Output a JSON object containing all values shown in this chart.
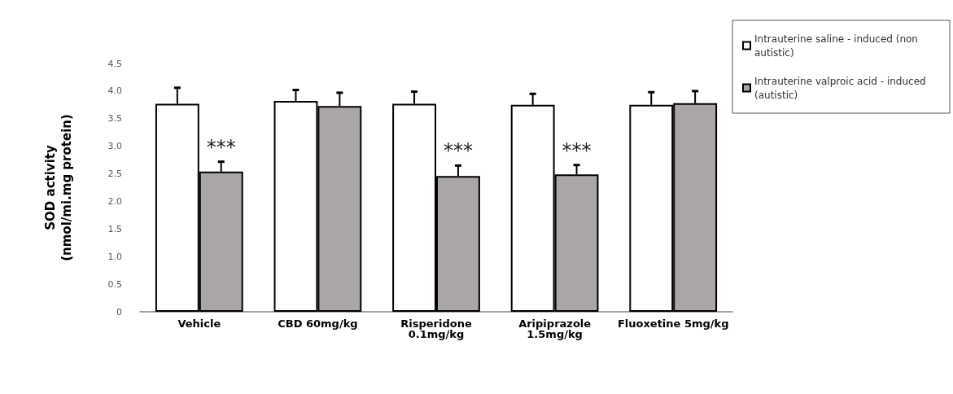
{
  "chart_data": {
    "type": "bar",
    "ylabel": "SOD activity\n(nmol/mi.mg protein)",
    "categories": [
      "Vehicle",
      "CBD 60mg/kg",
      "Risperidone\n0.1mg/kg",
      "Aripiprazole\n1.5mg/kg",
      "Fluoxetine 5mg/kg"
    ],
    "series": [
      {
        "name": "Intrauterine saline - induced (non autistic)",
        "color": "#ffffff",
        "values": [
          3.77,
          3.82,
          3.77,
          3.75,
          3.75
        ],
        "errors": [
          [
            3.77,
            4.06
          ],
          [
            3.82,
            4.02
          ],
          [
            3.77,
            3.99
          ],
          [
            3.75,
            3.95
          ],
          [
            3.75,
            3.98
          ]
        ]
      },
      {
        "name": "Intrauterine valproic acid - induced (autistic)",
        "color": "#aaa6a5",
        "values": [
          2.54,
          3.73,
          2.46,
          2.49,
          3.78
        ],
        "errors": [
          [
            2.54,
            2.72
          ],
          [
            3.73,
            3.97
          ],
          [
            2.46,
            2.65
          ],
          [
            2.49,
            2.66
          ],
          [
            3.78,
            4.0
          ]
        ]
      }
    ],
    "ylim": [
      0,
      4.5
    ],
    "yticks": [
      0,
      {
        "value": 0.5,
        "label": "0.5"
      },
      {
        "value": 1,
        "label": "1.0"
      },
      {
        "value": 1.5,
        "label": "1.5"
      },
      {
        "value": 2,
        "label": "2.0"
      },
      {
        "value": 2.5,
        "label": "2.5"
      },
      {
        "value": 3,
        "label": "3.0"
      },
      {
        "value": 3.5,
        "label": "3.5"
      },
      {
        "value": 4,
        "label": "4.0"
      },
      {
        "value": 4.5,
        "label": "4.5"
      }
    ],
    "grid": false,
    "legend": "top right",
    "annotations": [
      {
        "text": "***",
        "x": "Vehicle",
        "y": 2.72
      },
      {
        "text": "***",
        "x": "Risperidone\n0.1mg/kg",
        "y": 2.65
      },
      {
        "text": "***",
        "x": "Aripiprazole\n1.5mg/kg",
        "y": 2.66
      }
    ]
  }
}
